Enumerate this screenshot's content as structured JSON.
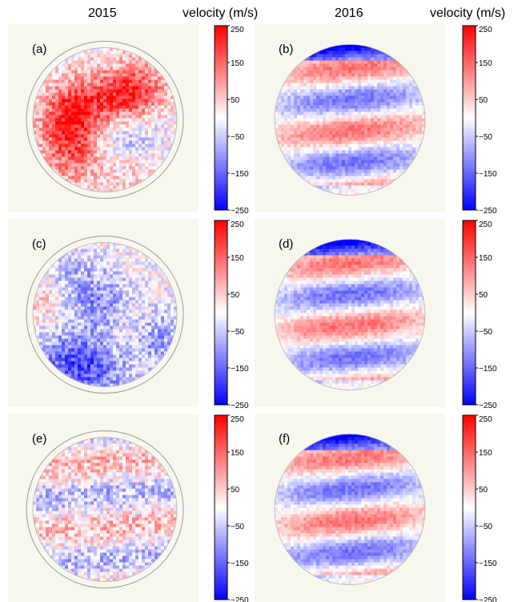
{
  "header": {
    "year_left": "2015",
    "year_right": "2016",
    "cbar_label_left": "velocity (m/s)",
    "cbar_label_right": "velocity (m/s)"
  },
  "colors": {
    "positive": "#ff0000",
    "zero": "#ffffff",
    "negative": "#0000ff",
    "panel_background": "#f7f7ef"
  },
  "chart_data": [
    {
      "type": "heatmap",
      "panel": "(a)",
      "year": "2015",
      "colorbar": {
        "label": "velocity (m/s)",
        "range": [
          -250,
          250
        ],
        "ticks": [
          250,
          150,
          50,
          -50,
          -150,
          -250
        ]
      },
      "pattern": "random blobs",
      "outer_ring": true
    },
    {
      "type": "heatmap",
      "panel": "(b)",
      "year": "2016",
      "colorbar": {
        "label": "velocity (m/s)",
        "range": [
          -250,
          250
        ],
        "ticks": [
          250,
          150,
          50,
          -50,
          -150,
          -250
        ]
      },
      "pattern": "horizontal bands",
      "outer_ring": false
    },
    {
      "type": "heatmap",
      "panel": "(c)",
      "year": "2015",
      "colorbar": {
        "label": "",
        "range": [
          -250,
          250
        ],
        "ticks": [
          250,
          150,
          50,
          -50,
          -150,
          -250
        ]
      },
      "pattern": "random blobs",
      "outer_ring": true
    },
    {
      "type": "heatmap",
      "panel": "(d)",
      "year": "2016",
      "colorbar": {
        "label": "",
        "range": [
          -250,
          250
        ],
        "ticks": [
          250,
          150,
          50,
          -50,
          -150,
          -250
        ]
      },
      "pattern": "horizontal bands",
      "outer_ring": false
    },
    {
      "type": "heatmap",
      "panel": "(e)",
      "year": "2015",
      "colorbar": {
        "label": "",
        "range": [
          -250,
          250
        ],
        "ticks": [
          250,
          150,
          50,
          -50,
          -150,
          -250
        ]
      },
      "pattern": "weak bands",
      "outer_ring": true
    },
    {
      "type": "heatmap",
      "panel": "(f)",
      "year": "2016",
      "colorbar": {
        "label": "",
        "range": [
          -250,
          250
        ],
        "ticks": [
          250,
          150,
          50,
          -50,
          -150,
          -250
        ]
      },
      "pattern": "horizontal bands",
      "outer_ring": false
    }
  ]
}
